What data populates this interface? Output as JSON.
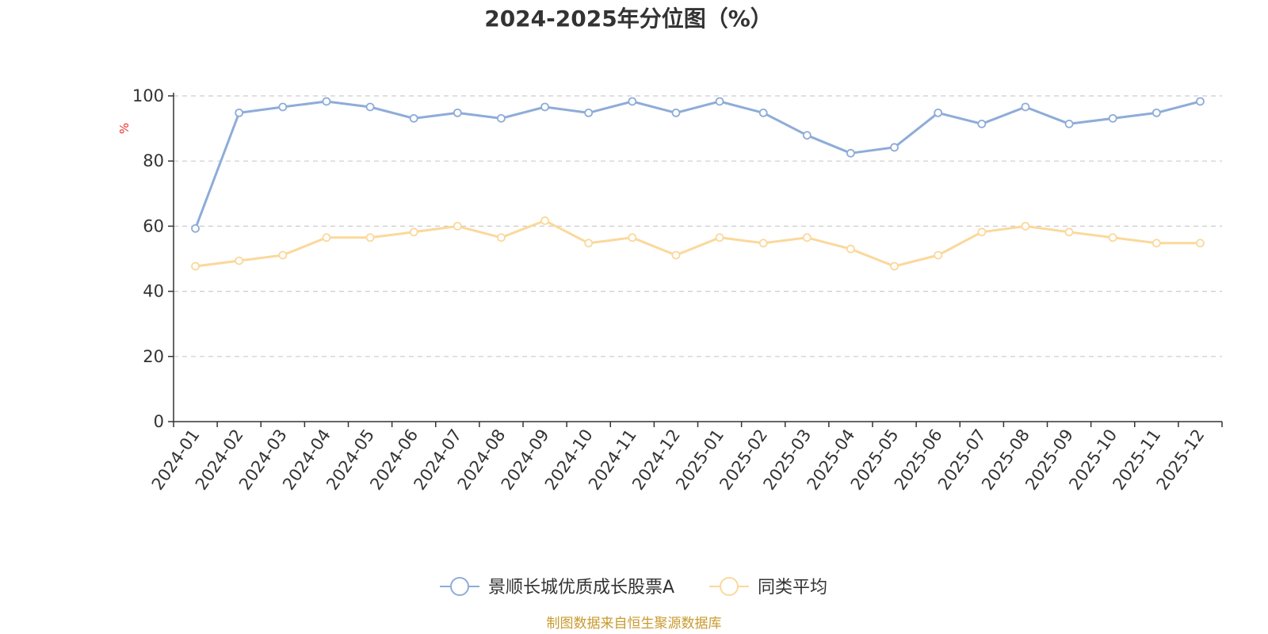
{
  "chart_data": {
    "type": "line",
    "title": "2024-2025年分位图（%）",
    "ylabel": "%",
    "xlabel": "",
    "ylim": [
      0,
      100
    ],
    "yticks": [
      0,
      20,
      40,
      60,
      80,
      100
    ],
    "grid": true,
    "legend_position": "bottom",
    "categories": [
      "2024-01",
      "2024-02",
      "2024-03",
      "2024-04",
      "2024-05",
      "2024-06",
      "2024-07",
      "2024-08",
      "2024-09",
      "2024-10",
      "2024-11",
      "2024-12",
      "2025-01",
      "2025-02",
      "2025-03",
      "2025-04",
      "2025-05",
      "2025-06",
      "2025-07",
      "2025-08",
      "2025-09",
      "2025-10",
      "2025-11",
      "2025-12"
    ],
    "series": [
      {
        "name": "景顺长城优质成长股票A",
        "color": "#8eacd8",
        "values": [
          59.3,
          94.8,
          96.6,
          98.3,
          96.6,
          93.1,
          94.8,
          93.1,
          96.6,
          94.8,
          98.3,
          94.8,
          98.3,
          94.8,
          87.9,
          82.4,
          84.2,
          94.8,
          91.4,
          96.6,
          91.4,
          93.1,
          94.8,
          98.3
        ]
      },
      {
        "name": "同类平均",
        "color": "#fbd89b",
        "values": [
          47.7,
          49.4,
          51.1,
          56.5,
          56.5,
          58.2,
          60.0,
          56.5,
          61.7,
          54.8,
          56.5,
          51.1,
          56.5,
          54.8,
          56.5,
          53.0,
          47.7,
          51.1,
          58.2,
          60.0,
          58.2,
          56.5,
          54.8,
          54.8
        ]
      }
    ],
    "source": "制图数据来自恒生聚源数据库"
  }
}
